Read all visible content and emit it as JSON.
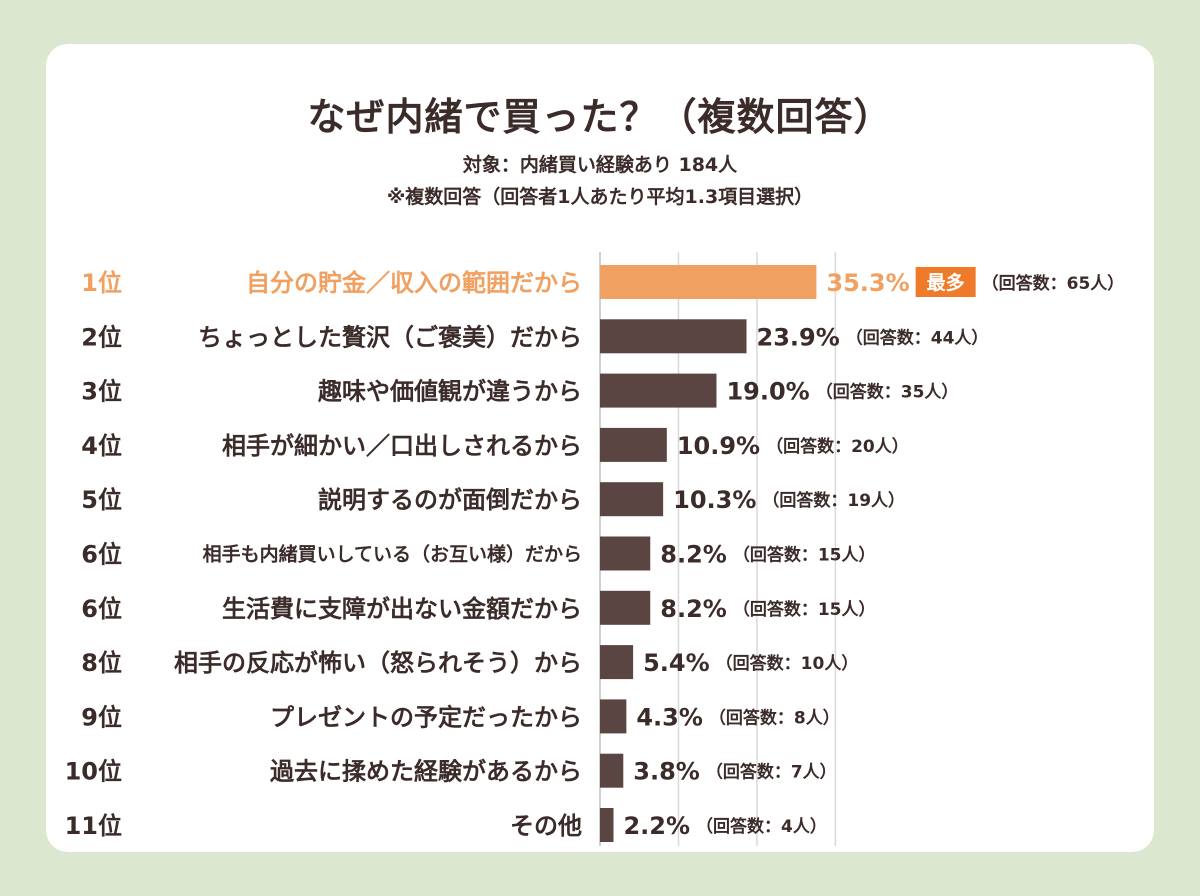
{
  "title": "なぜ内緒で買った？（複数回答）",
  "subtitle1": "対象：内緒買い経験あり 184人",
  "subtitle2": "※複数回答（回答者1人あたり平均1.3項目選択）",
  "colors": {
    "highlight": "#f0a060",
    "bar": "#5a4542",
    "badge": "#ee7a2a",
    "grid": "#d9d9d9",
    "background": "#dbe7cf"
  },
  "chart_data": {
    "type": "bar",
    "orientation": "horizontal",
    "title": "なぜ内緒で買った？（複数回答）",
    "xlim": [
      0,
      50
    ],
    "grid": true,
    "highlight_badge": "最多",
    "categories": [
      "自分の貯金／収入の範囲だから",
      "ちょっとした贅沢（ご褒美）だから",
      "趣味や価値観が違うから",
      "相手が細かい／口出しされるから",
      "説明するのが面倒だから",
      "相手も内緒買いしている（お互い様）だから",
      "生活費に支障が出ない金額だから",
      "相手の反応が怖い（怒られそう）から",
      "プレゼントの予定だったから",
      "過去に揉めた経験があるから",
      "その他"
    ],
    "ranks": [
      "1位",
      "2位",
      "3位",
      "4位",
      "5位",
      "6位",
      "6位",
      "8位",
      "9位",
      "10位",
      "11位"
    ],
    "values": [
      35.3,
      23.9,
      19.0,
      10.9,
      10.3,
      8.2,
      8.2,
      5.4,
      4.3,
      3.8,
      2.2
    ],
    "value_labels": [
      "35.3%",
      "23.9%",
      "19.0%",
      "10.9%",
      "10.3%",
      "8.2%",
      "8.2%",
      "5.4%",
      "4.3%",
      "3.8%",
      "2.2%"
    ],
    "counts": [
      "（回答数：65人）",
      "（回答数：44人）",
      "（回答数：35人）",
      "（回答数：20人）",
      "（回答数：19人）",
      "（回答数：15人）",
      "（回答数：15人）",
      "（回答数：10人）",
      "（回答数：8人）",
      "（回答数：7人）",
      "（回答数：4人）"
    ]
  }
}
